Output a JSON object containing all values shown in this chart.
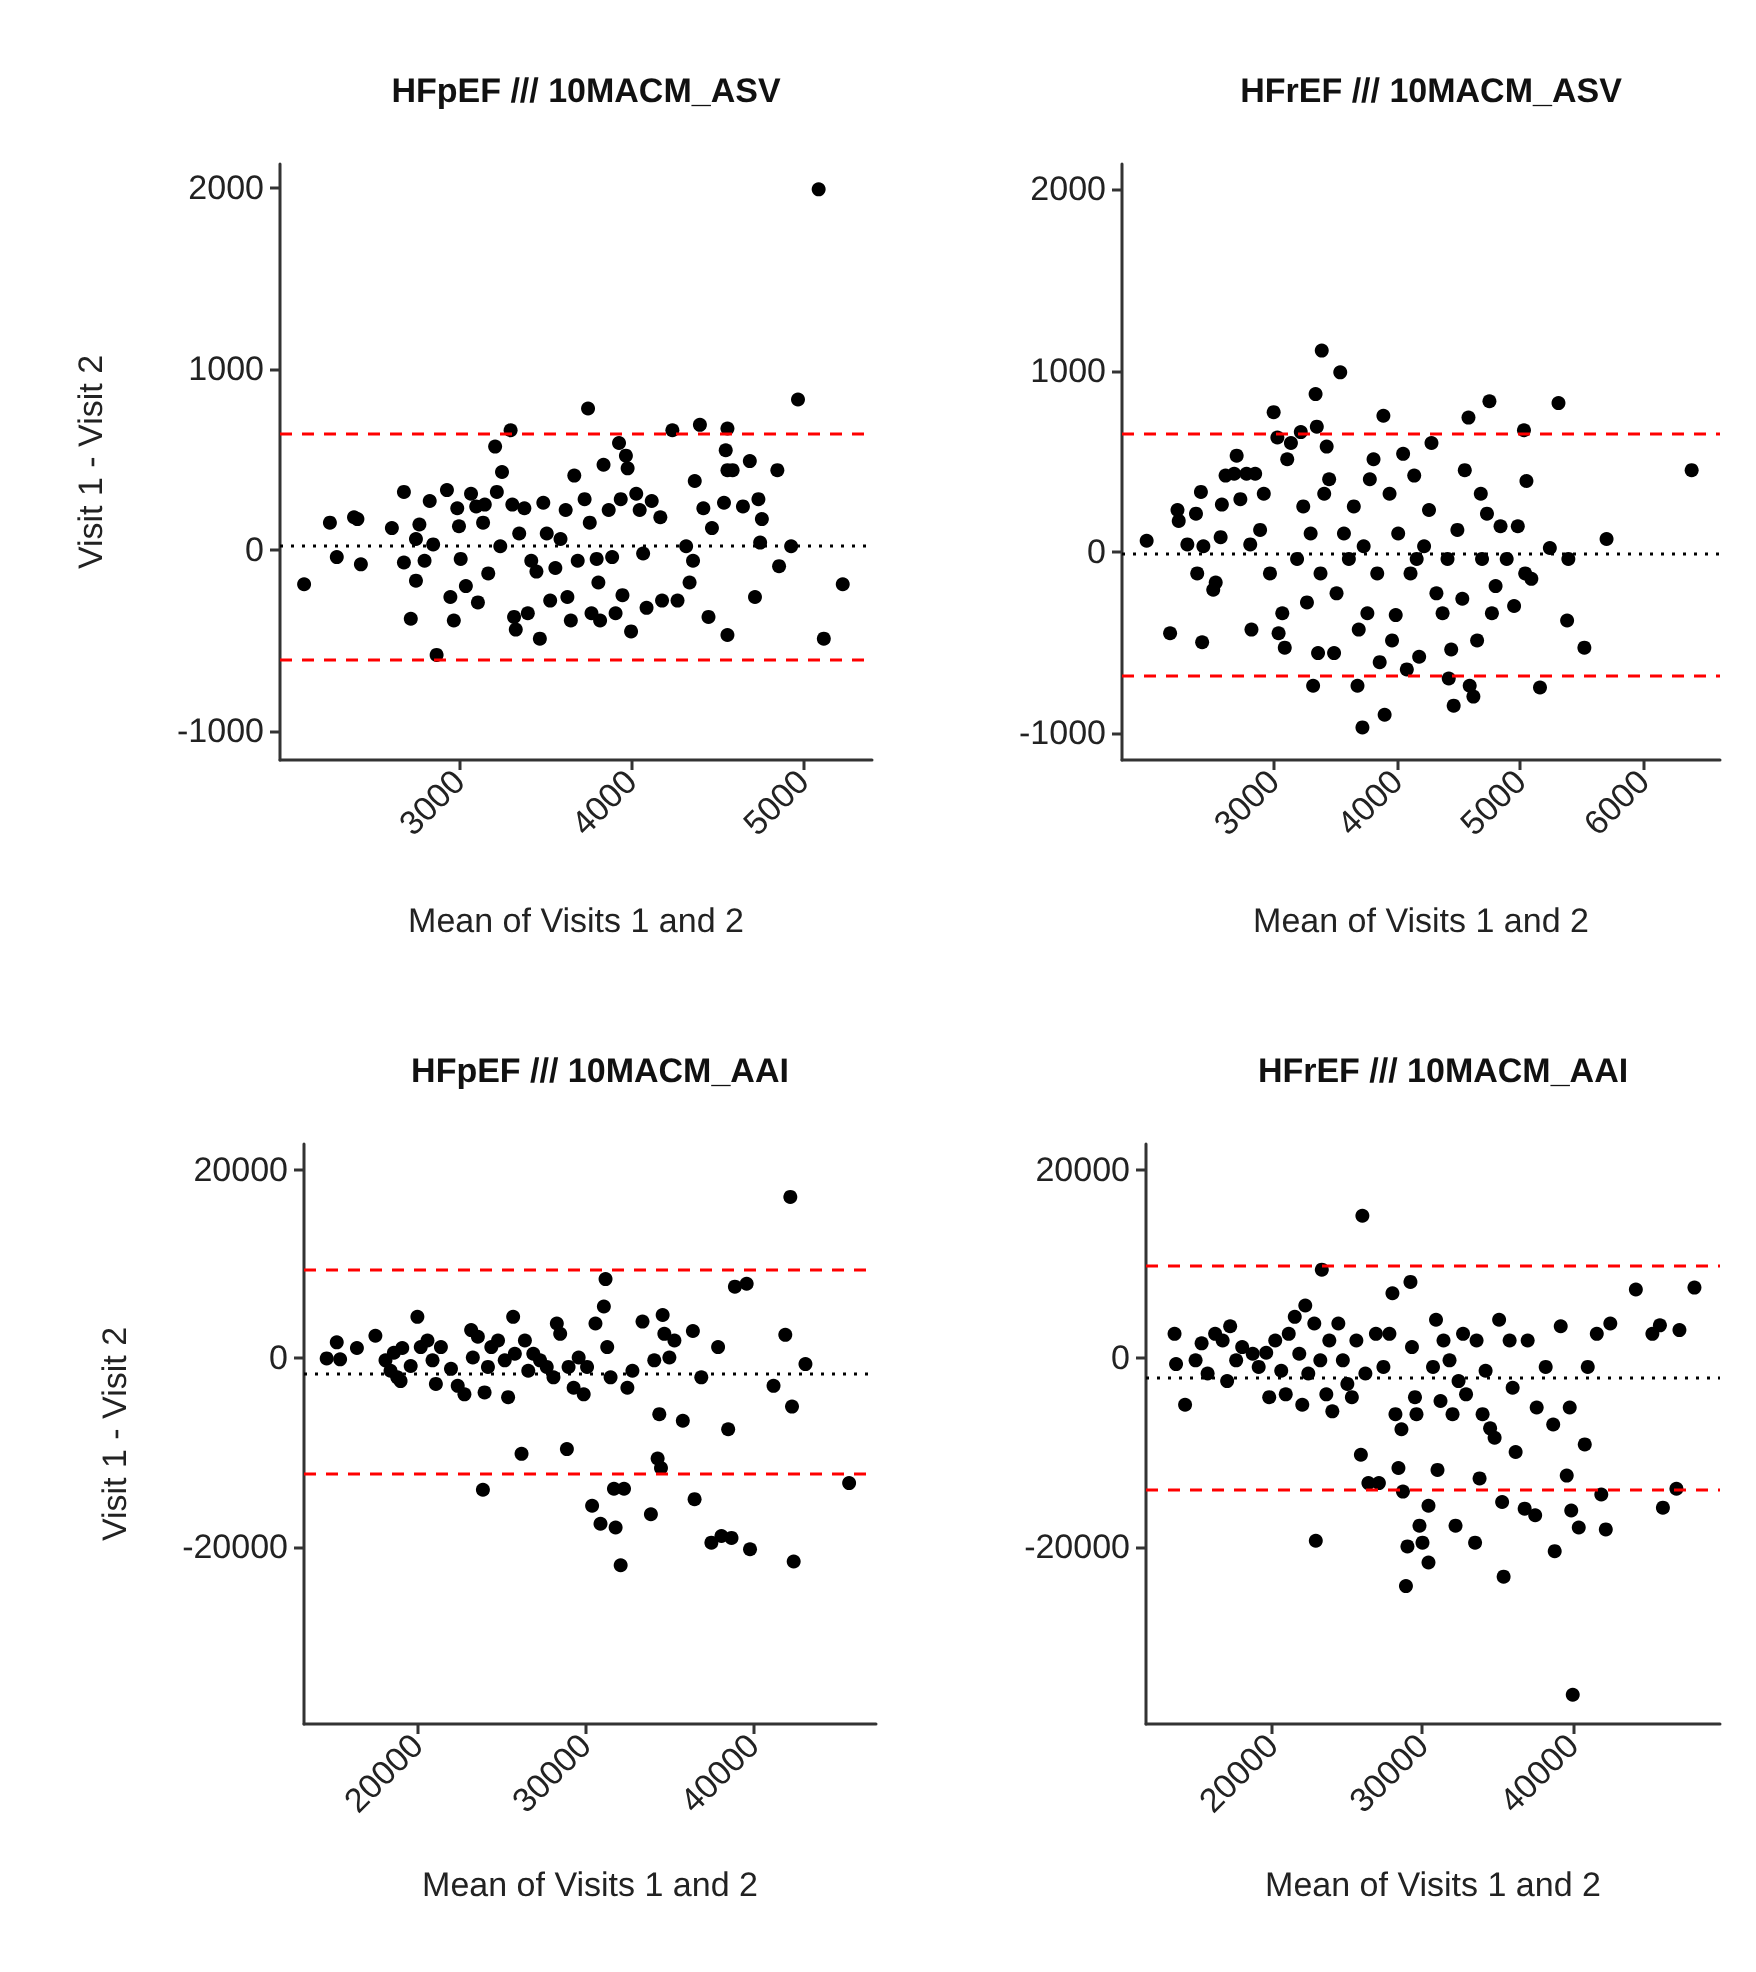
{
  "chart_data": [
    {
      "type": "scatter",
      "title": "HFpEF /// 10MACM_ASV",
      "xlabel": "Mean of Visits 1 and 2",
      "ylabel": "Visit 1 - Visit 2",
      "marker": "circle",
      "grid": false,
      "xlim": [
        1960,
        5400
      ],
      "ylim": [
        -1160,
        2130
      ],
      "xticks": [
        3000,
        4000,
        5000
      ],
      "yticks": [
        -1000,
        0,
        1000,
        2000
      ],
      "ref_lines": [
        {
          "axis": "y",
          "value": 640,
          "color": "#ff0000",
          "line_style": "dashed"
        },
        {
          "axis": "y",
          "value": 20,
          "color": "#000000",
          "line_style": "dotted"
        },
        {
          "axis": "y",
          "value": -610,
          "color": "#ff0000",
          "line_style": "dashed"
        }
      ],
      "x": [
        2100,
        2250,
        2290,
        2390,
        2410,
        2430,
        2610,
        2680,
        2680,
        2720,
        2750,
        2770,
        2750,
        2800,
        2830,
        2850,
        2870,
        2930,
        2950,
        2970,
        2990,
        3000,
        3010,
        3040,
        3070,
        3100,
        3110,
        3140,
        3150,
        3170,
        3210,
        3220,
        3240,
        3250,
        3300,
        3310,
        3320,
        3330,
        3350,
        3380,
        3400,
        3420,
        3450,
        3470,
        3490,
        3510,
        3530,
        3560,
        3590,
        3620,
        3630,
        3650,
        3670,
        3690,
        3730,
        3750,
        3760,
        3770,
        3800,
        3810,
        3820,
        3840,
        3870,
        3890,
        3910,
        3930,
        3940,
        3950,
        3970,
        3980,
        4000,
        4030,
        4050,
        4070,
        4090,
        4120,
        4170,
        4180,
        4240,
        4270,
        4320,
        4340,
        4360,
        4370,
        4400,
        4420,
        4450,
        4470,
        4540,
        4550,
        4560,
        4560,
        4560,
        4590,
        4650,
        4690,
        4720,
        4740,
        4750,
        4760,
        4850,
        4860,
        4930,
        4970,
        5090,
        5120,
        5230
      ],
      "series": [
        {
          "color": "#000000",
          "values": [
            -190,
            150,
            -40,
            180,
            170,
            -80,
            120,
            320,
            -70,
            -380,
            60,
            140,
            -170,
            -60,
            270,
            30,
            -580,
            330,
            -260,
            -390,
            230,
            130,
            -50,
            -200,
            310,
            240,
            -290,
            150,
            250,
            -130,
            570,
            320,
            20,
            430,
            660,
            250,
            -370,
            -440,
            90,
            230,
            -350,
            -60,
            -120,
            -490,
            260,
            90,
            -280,
            -100,
            60,
            220,
            -260,
            -390,
            410,
            -60,
            280,
            780,
            150,
            -350,
            -50,
            -180,
            -390,
            470,
            220,
            -40,
            -350,
            590,
            280,
            -250,
            520,
            450,
            -450,
            310,
            220,
            -20,
            -320,
            270,
            180,
            -280,
            660,
            -280,
            20,
            -180,
            -60,
            380,
            690,
            230,
            -370,
            120,
            260,
            550,
            670,
            -470,
            440,
            440,
            240,
            490,
            -260,
            280,
            40,
            170,
            440,
            -90,
            20,
            830,
            1990,
            -490,
            -190
          ]
        }
      ]
    },
    {
      "type": "scatter",
      "title": "HFrEF /// 10MACM_ASV",
      "xlabel": "Mean of Visits 1 and 2",
      "marker": "circle",
      "grid": false,
      "xlim": [
        1770,
        6620
      ],
      "ylim": [
        -1150,
        2140
      ],
      "xticks": [
        3000,
        4000,
        5000,
        6000
      ],
      "yticks": [
        -1000,
        0,
        1000,
        2000
      ],
      "ref_lines": [
        {
          "axis": "y",
          "value": 650,
          "color": "#ff0000",
          "line_style": "dashed"
        },
        {
          "axis": "y",
          "value": -10,
          "color": "#000000",
          "line_style": "dotted"
        },
        {
          "axis": "y",
          "value": -680,
          "color": "#ff0000",
          "line_style": "dashed"
        }
      ],
      "x": [
        1970,
        2160,
        2220,
        2230,
        2300,
        2370,
        2380,
        2410,
        2420,
        2430,
        2510,
        2530,
        2570,
        2580,
        2610,
        2680,
        2700,
        2730,
        2780,
        2810,
        2820,
        2850,
        2890,
        2920,
        2970,
        3000,
        3030,
        3040,
        3070,
        3090,
        3110,
        3140,
        3190,
        3220,
        3240,
        3270,
        3300,
        3320,
        3340,
        3350,
        3360,
        3380,
        3390,
        3410,
        3430,
        3450,
        3490,
        3510,
        3540,
        3570,
        3610,
        3650,
        3680,
        3690,
        3720,
        3730,
        3760,
        3780,
        3810,
        3840,
        3860,
        3890,
        3900,
        3940,
        3960,
        3990,
        4010,
        4050,
        4080,
        4110,
        4140,
        4160,
        4180,
        4220,
        4260,
        4280,
        4320,
        4370,
        4410,
        4420,
        4440,
        4460,
        4490,
        4530,
        4550,
        4580,
        4590,
        4620,
        4650,
        4680,
        4690,
        4730,
        4750,
        4770,
        4800,
        4840,
        4890,
        4950,
        4980,
        5030,
        5040,
        5050,
        5090,
        5160,
        5240,
        5310,
        5380,
        5390,
        5520,
        5700,
        6390
      ],
      "series": [
        {
          "color": "#000000",
          "values": [
            60,
            -450,
            230,
            170,
            40,
            210,
            -120,
            330,
            -500,
            30,
            -210,
            -170,
            80,
            260,
            420,
            430,
            530,
            290,
            430,
            40,
            -430,
            430,
            120,
            320,
            -120,
            770,
            630,
            -450,
            -340,
            -530,
            510,
            600,
            -40,
            660,
            250,
            -280,
            100,
            -740,
            870,
            690,
            -560,
            -120,
            1110,
            320,
            580,
            400,
            -560,
            -230,
            990,
            100,
            -40,
            250,
            -740,
            -430,
            -970,
            30,
            -340,
            400,
            510,
            -120,
            -610,
            750,
            -900,
            320,
            -490,
            -350,
            100,
            540,
            -650,
            -120,
            420,
            -40,
            -580,
            30,
            230,
            600,
            -230,
            -340,
            -40,
            -700,
            -540,
            -850,
            120,
            -260,
            450,
            740,
            -740,
            -800,
            -490,
            320,
            -40,
            210,
            830,
            -340,
            -190,
            140,
            -40,
            -300,
            140,
            670,
            -120,
            390,
            -150,
            -750,
            20,
            820,
            -380,
            -40,
            -530,
            70,
            450
          ]
        }
      ]
    },
    {
      "type": "scatter",
      "title": "HFpEF /// 10MACM_AAI",
      "xlabel": "Mean of Visits 1 and 2",
      "ylabel": "Visit 1 - Visit 2",
      "marker": "circle",
      "grid": false,
      "xlim": [
        13250,
        47300
      ],
      "ylim": [
        -38700,
        22700
      ],
      "xticks": [
        20000,
        30000,
        40000
      ],
      "yticks": [
        -20000,
        0,
        20000
      ],
      "ref_lines": [
        {
          "axis": "y",
          "value": 9400,
          "color": "#ff0000",
          "line_style": "dashed"
        },
        {
          "axis": "y",
          "value": -1500,
          "color": "#000000",
          "line_style": "dotted"
        },
        {
          "axis": "y",
          "value": -12200,
          "color": "#ff0000",
          "line_style": "dashed"
        }
      ],
      "x": [
        14600,
        15200,
        15400,
        16400,
        17500,
        18100,
        18400,
        18600,
        18800,
        19000,
        19100,
        19600,
        20000,
        20200,
        20600,
        20900,
        21100,
        21400,
        22000,
        22400,
        22800,
        23200,
        23300,
        23600,
        23900,
        24000,
        24200,
        24400,
        24800,
        25200,
        25400,
        25700,
        25800,
        26200,
        26400,
        26600,
        26900,
        27300,
        27700,
        28100,
        28300,
        28500,
        28900,
        29000,
        29300,
        29600,
        29900,
        30100,
        30400,
        30600,
        30900,
        31100,
        31200,
        31300,
        31500,
        31700,
        31800,
        32100,
        32300,
        32500,
        32800,
        33400,
        33900,
        34100,
        34300,
        34400,
        34500,
        34600,
        34700,
        35000,
        35300,
        35800,
        36400,
        36500,
        36900,
        37500,
        37900,
        38100,
        38500,
        38700,
        38900,
        39600,
        39800,
        41200,
        41900,
        42200,
        42300,
        42400,
        43100,
        45700
      ],
      "series": [
        {
          "color": "#000000",
          "values": [
            0,
            1700,
            -100,
            1100,
            2400,
            -200,
            -1300,
            600,
            -2000,
            -2400,
            1100,
            -800,
            4400,
            1200,
            1900,
            -200,
            -2700,
            1200,
            -1100,
            -2900,
            -3800,
            3000,
            100,
            2300,
            -13900,
            -3600,
            -900,
            1200,
            1900,
            -200,
            -4100,
            4400,
            500,
            -10100,
            1900,
            -1300,
            500,
            -200,
            -900,
            -2000,
            3700,
            2600,
            -9600,
            -900,
            -3100,
            100,
            -3800,
            -900,
            -15600,
            3700,
            -17500,
            5500,
            8400,
            1200,
            -2000,
            -13800,
            -17900,
            -21900,
            -13800,
            -3100,
            -1300,
            3900,
            -16500,
            -200,
            -10600,
            -5900,
            -11600,
            4600,
            2600,
            100,
            1900,
            -6600,
            2900,
            -14900,
            -2000,
            -19500,
            1200,
            -18800,
            -7500,
            -19000,
            7600,
            7900,
            -20200,
            -2900,
            2500,
            17100,
            -5100,
            -21500,
            -600,
            -13200
          ]
        }
      ]
    },
    {
      "type": "scatter",
      "title": "HFrEF /// 10MACM_AAI",
      "xlabel": "Mean of Visits 1 and 2",
      "marker": "circle",
      "grid": false,
      "xlim": [
        11600,
        49800
      ],
      "ylim": [
        -38700,
        22700
      ],
      "xticks": [
        20000,
        30000,
        40000
      ],
      "yticks": [
        -20000,
        0,
        20000
      ],
      "ref_lines": [
        {
          "axis": "y",
          "value": 9800,
          "color": "#ff0000",
          "line_style": "dashed"
        },
        {
          "axis": "y",
          "value": -2000,
          "color": "#000000",
          "line_style": "dotted"
        },
        {
          "axis": "y",
          "value": -13800,
          "color": "#ff0000",
          "line_style": "dashed"
        }
      ],
      "x": [
        13500,
        13600,
        14200,
        14900,
        15300,
        15700,
        16200,
        16700,
        17000,
        17200,
        17600,
        18000,
        18700,
        19100,
        19600,
        19800,
        20200,
        20600,
        20900,
        21100,
        21500,
        21800,
        22000,
        22200,
        22400,
        22800,
        22900,
        23200,
        23300,
        23600,
        23800,
        24000,
        24400,
        24700,
        25000,
        25300,
        25600,
        25900,
        26000,
        26200,
        26400,
        26900,
        27100,
        27400,
        27800,
        28000,
        28200,
        28400,
        28600,
        28700,
        28900,
        29000,
        29200,
        29300,
        29500,
        29600,
        29800,
        30000,
        30400,
        30400,
        30700,
        30900,
        31000,
        31200,
        31400,
        31800,
        32000,
        32200,
        32400,
        32700,
        32900,
        33500,
        33600,
        33800,
        34000,
        34200,
        34500,
        34800,
        35100,
        35300,
        35400,
        35800,
        36000,
        36200,
        36800,
        37000,
        37500,
        37600,
        38200,
        38700,
        38800,
        39200,
        39600,
        39800,
        39900,
        40000,
        40400,
        40800,
        41000,
        41600,
        41900,
        42200,
        42500,
        44200,
        45300,
        45800,
        46000,
        46900,
        47100,
        48100
      ],
      "series": [
        {
          "color": "#000000",
          "values": [
            2600,
            -600,
            -4900,
            -200,
            1600,
            -1600,
            2600,
            1900,
            -2400,
            3400,
            -200,
            1200,
            500,
            -900,
            600,
            -4100,
            1900,
            -1300,
            -3800,
            2600,
            4400,
            500,
            -4900,
            5600,
            -1600,
            3700,
            -19300,
            -200,
            9400,
            -3800,
            1900,
            -5600,
            3700,
            -200,
            -2700,
            -4100,
            1900,
            -10200,
            15100,
            -1600,
            -13200,
            2600,
            -13200,
            -900,
            2600,
            6900,
            -5900,
            -11600,
            -7500,
            -14100,
            -24100,
            -19900,
            8100,
            1200,
            -4100,
            -5900,
            -17700,
            -19500,
            -21600,
            -15600,
            -900,
            4100,
            -11800,
            -4500,
            1900,
            -200,
            -5900,
            -17700,
            -2400,
            2600,
            -3800,
            -19500,
            1900,
            -12700,
            -5900,
            -1300,
            -7400,
            -8400,
            4100,
            -15200,
            -23100,
            1900,
            -3100,
            -9900,
            -15900,
            1900,
            -16600,
            -5200,
            -900,
            -7000,
            -20400,
            3400,
            -12400,
            -5200,
            -16100,
            -35600,
            -17900,
            -9100,
            -900,
            2600,
            -14400,
            -18100,
            3700,
            7300,
            2600,
            3500,
            -15800,
            -13800,
            3000,
            7500
          ]
        }
      ]
    }
  ]
}
